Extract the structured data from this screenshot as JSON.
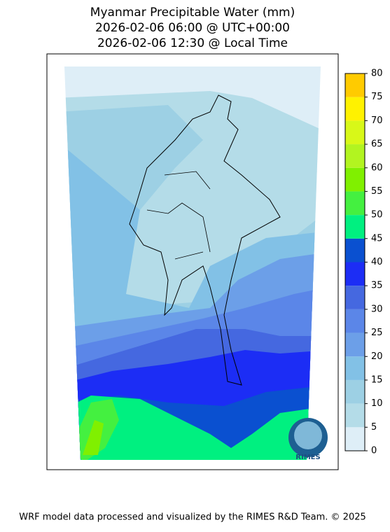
{
  "header": {
    "title_lines": [
      "Myanmar Precipitable Water (mm)",
      "2026-02-06 06:00 @ UTC+00:00",
      "2026-02-06 12:30 @ Local Time"
    ]
  },
  "colorbar": {
    "ticks": [
      0,
      5,
      10,
      15,
      20,
      25,
      30,
      35,
      40,
      45,
      50,
      55,
      60,
      65,
      70,
      75,
      80
    ],
    "colors": [
      "#deeef7",
      "#b4dce8",
      "#9dd0e4",
      "#82c1e6",
      "#6c9fe8",
      "#5b86e8",
      "#4568e0",
      "#1c2df5",
      "#0a50d0",
      "#00f080",
      "#44f040",
      "#80f000",
      "#b2f420",
      "#d8f818",
      "#fff200",
      "#ffcb00"
    ]
  },
  "logo": {
    "text": "RIMES"
  },
  "footer": {
    "text": "WRF model data processed and visualized by the RIMES R&D Team. © 2025"
  }
}
